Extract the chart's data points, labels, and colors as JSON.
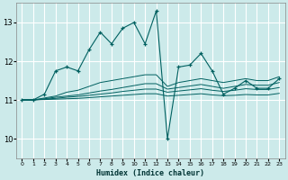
{
  "xlabel": "Humidex (Indice chaleur)",
  "bg_color": "#cceaea",
  "line_color": "#006060",
  "grid_color": "#ffffff",
  "xlim": [
    -0.5,
    23.5
  ],
  "ylim": [
    9.5,
    13.5
  ],
  "xticks": [
    0,
    1,
    2,
    3,
    4,
    5,
    6,
    7,
    8,
    9,
    10,
    11,
    12,
    13,
    14,
    15,
    16,
    17,
    18,
    19,
    20,
    21,
    22,
    23
  ],
  "yticks": [
    10,
    11,
    12,
    13
  ],
  "line1_x": [
    0,
    1,
    2,
    3,
    4,
    5,
    6,
    7,
    8,
    9,
    10,
    11,
    12,
    13,
    14,
    15,
    16,
    17,
    18,
    19,
    20,
    21,
    22,
    23
  ],
  "line1_y": [
    11.0,
    11.0,
    11.15,
    11.75,
    11.85,
    11.75,
    12.3,
    12.75,
    12.45,
    12.85,
    13.0,
    12.45,
    13.3,
    10.0,
    11.85,
    11.9,
    12.2,
    11.75,
    11.15,
    11.3,
    11.5,
    11.3,
    11.3,
    11.55
  ],
  "line2_x": [
    0,
    1,
    2,
    3,
    4,
    5,
    6,
    7,
    8,
    9,
    10,
    11,
    12,
    13,
    14,
    15,
    16,
    17,
    18,
    19,
    20,
    21,
    22,
    23
  ],
  "line2_y": [
    11.0,
    11.0,
    11.05,
    11.1,
    11.2,
    11.25,
    11.35,
    11.45,
    11.5,
    11.55,
    11.6,
    11.65,
    11.65,
    11.35,
    11.45,
    11.5,
    11.55,
    11.5,
    11.45,
    11.5,
    11.55,
    11.5,
    11.5,
    11.6
  ],
  "line3_x": [
    0,
    1,
    2,
    3,
    4,
    5,
    6,
    7,
    8,
    9,
    10,
    11,
    12,
    13,
    14,
    15,
    16,
    17,
    18,
    19,
    20,
    21,
    22,
    23
  ],
  "line3_y": [
    11.0,
    11.0,
    11.03,
    11.07,
    11.1,
    11.13,
    11.18,
    11.23,
    11.27,
    11.32,
    11.37,
    11.42,
    11.42,
    11.28,
    11.32,
    11.36,
    11.4,
    11.35,
    11.3,
    11.35,
    11.4,
    11.38,
    11.38,
    11.45
  ],
  "line4_x": [
    0,
    1,
    2,
    3,
    4,
    5,
    6,
    7,
    8,
    9,
    10,
    11,
    12,
    13,
    14,
    15,
    16,
    17,
    18,
    19,
    20,
    21,
    22,
    23
  ],
  "line4_y": [
    11.0,
    11.0,
    11.02,
    11.04,
    11.07,
    11.09,
    11.12,
    11.15,
    11.18,
    11.22,
    11.25,
    11.28,
    11.28,
    11.2,
    11.23,
    11.26,
    11.29,
    11.25,
    11.22,
    11.25,
    11.29,
    11.27,
    11.27,
    11.32
  ],
  "line5_x": [
    0,
    1,
    2,
    3,
    4,
    5,
    6,
    7,
    8,
    9,
    10,
    11,
    12,
    13,
    14,
    15,
    16,
    17,
    18,
    19,
    20,
    21,
    22,
    23
  ],
  "line5_y": [
    11.0,
    11.0,
    11.01,
    11.02,
    11.03,
    11.04,
    11.06,
    11.08,
    11.1,
    11.12,
    11.14,
    11.16,
    11.16,
    11.1,
    11.12,
    11.14,
    11.16,
    11.13,
    11.11,
    11.12,
    11.14,
    11.13,
    11.13,
    11.17
  ]
}
